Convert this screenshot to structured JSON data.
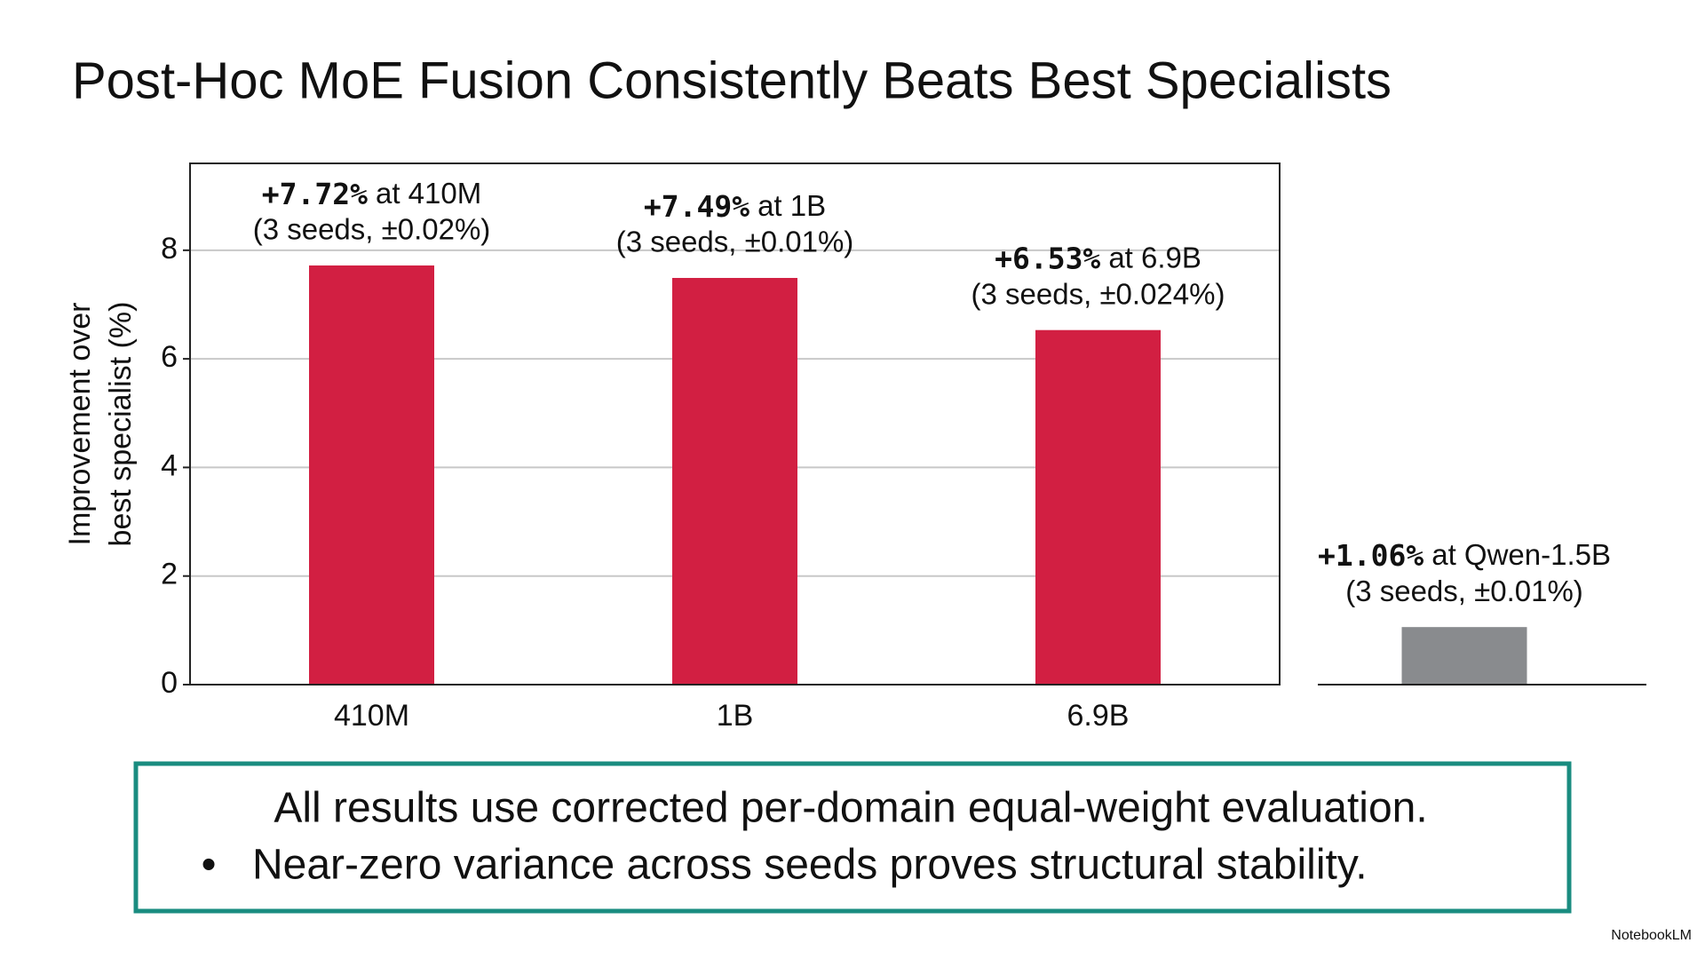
{
  "title": "Post-Hoc MoE Fusion Consistently Beats Best Specialists",
  "chart_data": [
    {
      "type": "bar",
      "ylabel": [
        "Improvement over",
        "best specialist (%)"
      ],
      "categories": [
        "410M",
        "1B",
        "6.9B"
      ],
      "values": [
        7.72,
        7.49,
        6.53
      ],
      "value_labels": [
        "+7.72%",
        "+7.49%",
        "+6.53%"
      ],
      "label_suffixes": [
        "at 410M",
        "at 1B",
        "at 6.9B"
      ],
      "seed_notes": [
        "(3 seeds, ±0.02%)",
        "(3 seeds, ±0.01%)",
        "(3 seeds, ±0.024%)"
      ],
      "color": "#d21f42",
      "ylim": [
        0,
        9.6
      ],
      "yticks": [
        0,
        2,
        4,
        6,
        8
      ],
      "grid": true
    },
    {
      "type": "bar",
      "categories": [
        null
      ],
      "values": [
        1.06
      ],
      "value_labels": [
        "+1.06%"
      ],
      "label_suffixes": [
        "at Qwen-1.5B"
      ],
      "seed_notes": [
        "(3 seeds, ±0.01%)"
      ],
      "color": "#898b8e",
      "ylim": [
        0,
        9.6
      ]
    }
  ],
  "callout": {
    "lines": [
      "All results use corrected per-domain equal-weight evaluation."
    ],
    "bullets": [
      "Near-zero variance across seeds proves structural stability."
    ]
  },
  "footer": "NotebookLM"
}
